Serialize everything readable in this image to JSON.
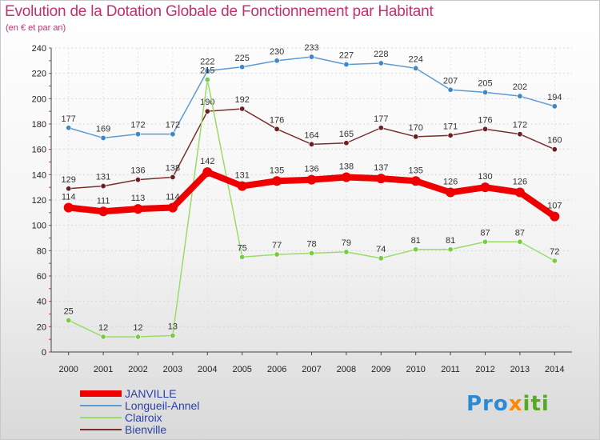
{
  "chart_data": {
    "type": "line",
    "title": "Evolution de la Dotation Globale de Fonctionnement par Habitant",
    "subtitle": "(en € et par an)",
    "x": [
      "2000",
      "2001",
      "2002",
      "2003",
      "2004",
      "2005",
      "2006",
      "2007",
      "2008",
      "2009",
      "2010",
      "2011",
      "2012",
      "2013",
      "2014"
    ],
    "ylim": [
      0,
      240
    ],
    "yticks": [
      0,
      20,
      40,
      60,
      80,
      100,
      120,
      140,
      160,
      180,
      200,
      220,
      240
    ],
    "series": [
      {
        "name": "Longueil-Annel",
        "color": "#5b9bd5",
        "marker": "#3f87c7",
        "values": [
          177,
          169,
          172,
          172,
          222,
          225,
          230,
          233,
          227,
          228,
          224,
          207,
          205,
          202,
          194
        ]
      },
      {
        "name": "Bienville",
        "color": "#7a2e2e",
        "marker": "#6b1f1f",
        "values": [
          129,
          131,
          136,
          138,
          190,
          192,
          176,
          164,
          165,
          177,
          170,
          171,
          176,
          172,
          160
        ]
      },
      {
        "name": "Clairoix",
        "color": "#99dd66",
        "marker": "#77cc44",
        "values": [
          25,
          12,
          12,
          13,
          215,
          75,
          77,
          78,
          79,
          74,
          81,
          81,
          87,
          87,
          72
        ]
      },
      {
        "name": "JANVILLE",
        "color": "#ee0000",
        "marker": "#ee0000",
        "values": [
          114,
          111,
          113,
          114,
          142,
          131,
          135,
          136,
          138,
          137,
          135,
          126,
          130,
          126,
          107
        ]
      }
    ],
    "legend": [
      {
        "name": "JANVILLE",
        "color": "#ee0000"
      },
      {
        "name": "Longueil-Annel",
        "color": "#5b9bd5"
      },
      {
        "name": "Clairoix",
        "color": "#99dd66"
      },
      {
        "name": "Bienville",
        "color": "#7a2e2e"
      }
    ]
  },
  "logo": {
    "text": "Prox",
    "accent": "i",
    "rest": "ti"
  }
}
